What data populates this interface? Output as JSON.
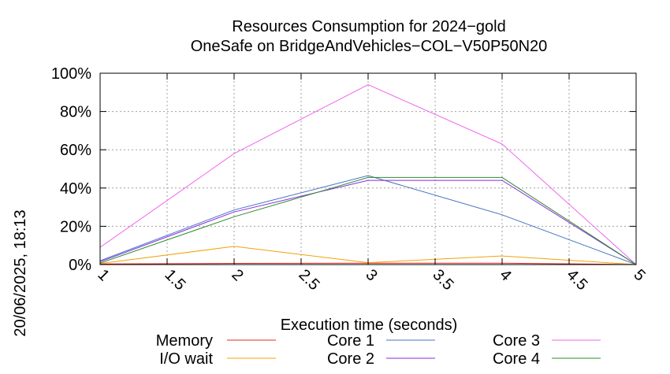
{
  "chart_data": {
    "type": "line",
    "title": [
      "Resources Consumption for 2024−gold",
      "OneSafe on BridgeAndVehicles−COL−V50P50N20"
    ],
    "xlabel": "Execution time (seconds)",
    "ylabel": "",
    "side_label": "20/06/2025, 18:13",
    "xlim": [
      1,
      5
    ],
    "ylim": [
      0,
      100
    ],
    "x_ticks": [
      1,
      1.5,
      2,
      2.5,
      3,
      3.5,
      4,
      4.5,
      5
    ],
    "x_tick_labels": [
      "1",
      "1.5",
      "2",
      "2.5",
      "3",
      "3.5",
      "4",
      "4.5",
      "5"
    ],
    "y_ticks": [
      0,
      20,
      40,
      60,
      80,
      100
    ],
    "y_tick_labels": [
      "0%",
      "20%",
      "40%",
      "60%",
      "80%",
      "100%"
    ],
    "grid": true,
    "legend_position": "bottom",
    "x": [
      1,
      2,
      3,
      4,
      5
    ],
    "series": [
      {
        "name": "Memory",
        "color": "#e8251e",
        "values": [
          0.3,
          0.6,
          0.7,
          0.7,
          0
        ]
      },
      {
        "name": "I/O wait",
        "color": "#f0a30a",
        "values": [
          0.5,
          9.5,
          1.0,
          4.5,
          0
        ]
      },
      {
        "name": "Core 1",
        "color": "#4472c4",
        "values": [
          2.0,
          28.5,
          46.5,
          26,
          0
        ]
      },
      {
        "name": "Core 2",
        "color": "#8a2be2",
        "values": [
          1.5,
          27.5,
          44,
          44,
          0
        ]
      },
      {
        "name": "Core 3",
        "color": "#ee66ee",
        "values": [
          9,
          58,
          94,
          63,
          0
        ]
      },
      {
        "name": "Core 4",
        "color": "#2e8b2e",
        "values": [
          0.8,
          25,
          45.5,
          45.5,
          0
        ]
      }
    ]
  }
}
